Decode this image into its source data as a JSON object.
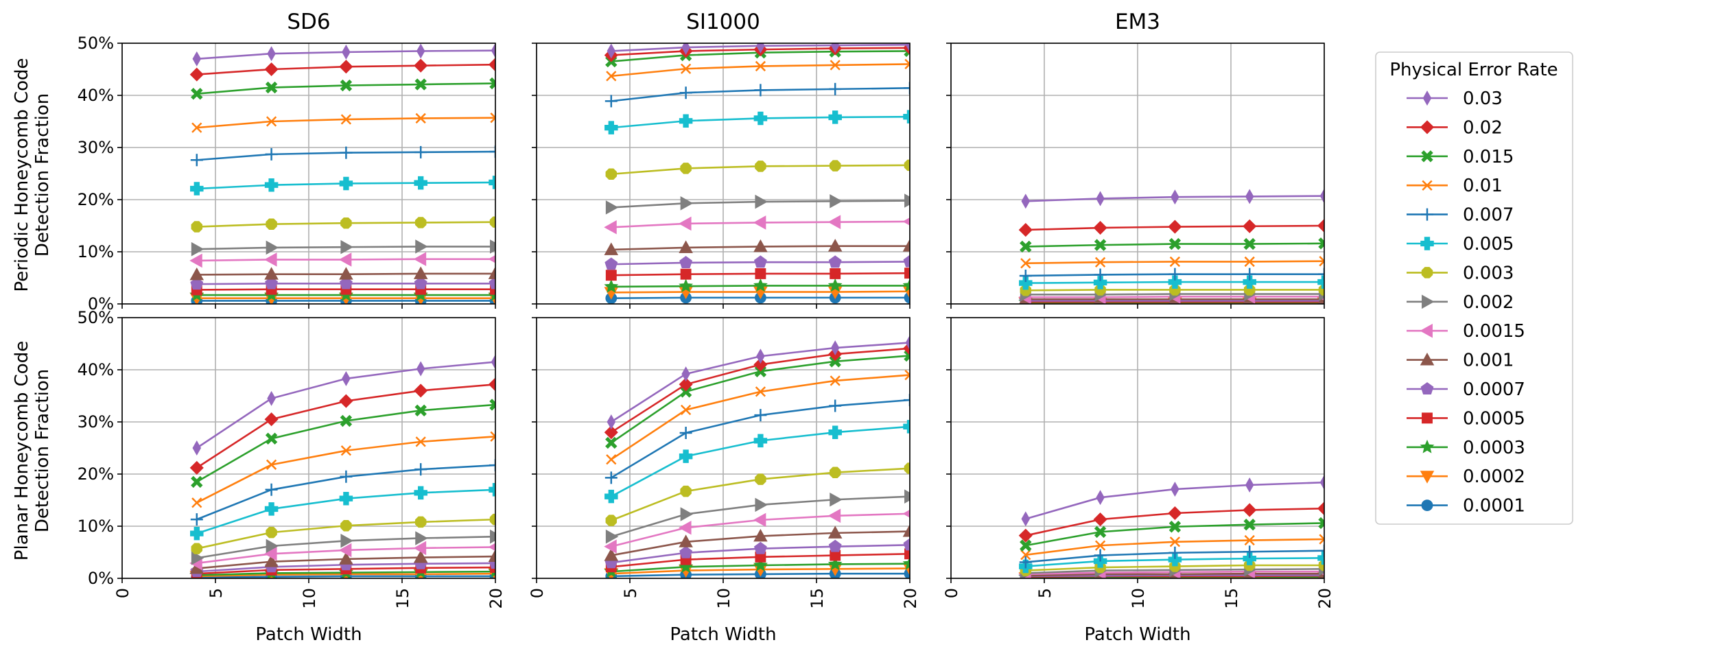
{
  "chart_data": {
    "type": "line",
    "columns": [
      "SD6",
      "SI1000",
      "EM3"
    ],
    "rows": [
      "Periodic Honeycomb Code\nDetection Fraction",
      "Planar Honeycomb Code\nDetection Fraction"
    ],
    "xlabel": "Patch Width",
    "xlim": [
      0,
      20
    ],
    "xticks": [
      0,
      5,
      10,
      15,
      20
    ],
    "ylim": [
      0,
      0.5
    ],
    "yticks": [
      0,
      0.1,
      0.2,
      0.3,
      0.4,
      0.5
    ],
    "ytick_labels": [
      "0%",
      "10%",
      "20%",
      "30%",
      "40%",
      "50%"
    ],
    "x": [
      4,
      8,
      12,
      16,
      20
    ],
    "grid": true,
    "legend_title": "Physical Error Rate",
    "legend_position": "right",
    "series": [
      {
        "name": "0.03",
        "color": "#9467bd",
        "marker": "thin_diamond"
      },
      {
        "name": "0.02",
        "color": "#d62728",
        "marker": "diamond"
      },
      {
        "name": "0.015",
        "color": "#2ca02c",
        "marker": "x_filled"
      },
      {
        "name": "0.01",
        "color": "#ff7f0e",
        "marker": "x"
      },
      {
        "name": "0.007",
        "color": "#1f77b4",
        "marker": "plus"
      },
      {
        "name": "0.005",
        "color": "#17becf",
        "marker": "plus_filled"
      },
      {
        "name": "0.003",
        "color": "#bcbd22",
        "marker": "octagon"
      },
      {
        "name": "0.002",
        "color": "#7f7f7f",
        "marker": "triangle_right"
      },
      {
        "name": "0.0015",
        "color": "#e377c2",
        "marker": "triangle_left"
      },
      {
        "name": "0.001",
        "color": "#8c564b",
        "marker": "triangle_up"
      },
      {
        "name": "0.0007",
        "color": "#9467bd",
        "marker": "pentagon"
      },
      {
        "name": "0.0005",
        "color": "#d62728",
        "marker": "square"
      },
      {
        "name": "0.0003",
        "color": "#2ca02c",
        "marker": "star"
      },
      {
        "name": "0.0002",
        "color": "#ff7f0e",
        "marker": "triangle_down"
      },
      {
        "name": "0.0001",
        "color": "#1f77b4",
        "marker": "circle"
      }
    ],
    "panels": [
      [
        [
          [
            0.47,
            0.48,
            0.483,
            0.485,
            0.486
          ],
          [
            0.44,
            0.45,
            0.455,
            0.457,
            0.459
          ],
          [
            0.403,
            0.415,
            0.419,
            0.421,
            0.423
          ],
          [
            0.338,
            0.35,
            0.354,
            0.356,
            0.357
          ],
          [
            0.276,
            0.287,
            0.29,
            0.291,
            0.292
          ],
          [
            0.221,
            0.228,
            0.231,
            0.232,
            0.233
          ],
          [
            0.148,
            0.153,
            0.155,
            0.156,
            0.157
          ],
          [
            0.105,
            0.108,
            0.109,
            0.11,
            0.11
          ],
          [
            0.083,
            0.085,
            0.085,
            0.086,
            0.086
          ],
          [
            0.056,
            0.057,
            0.057,
            0.058,
            0.058
          ],
          [
            0.038,
            0.039,
            0.039,
            0.039,
            0.039
          ],
          [
            0.027,
            0.028,
            0.028,
            0.028,
            0.028
          ],
          [
            0.017,
            0.017,
            0.017,
            0.017,
            0.017
          ],
          [
            0.011,
            0.011,
            0.011,
            0.011,
            0.011
          ],
          [
            0.006,
            0.006,
            0.006,
            0.006,
            0.006
          ]
        ],
        [
          [
            0.485,
            0.492,
            0.495,
            0.496,
            0.497
          ],
          [
            0.477,
            0.485,
            0.488,
            0.49,
            0.491
          ],
          [
            0.465,
            0.477,
            0.482,
            0.484,
            0.485
          ],
          [
            0.437,
            0.451,
            0.456,
            0.458,
            0.46
          ],
          [
            0.389,
            0.405,
            0.41,
            0.412,
            0.414
          ],
          [
            0.338,
            0.351,
            0.356,
            0.358,
            0.359
          ],
          [
            0.249,
            0.26,
            0.264,
            0.265,
            0.266
          ],
          [
            0.185,
            0.193,
            0.196,
            0.197,
            0.198
          ],
          [
            0.147,
            0.154,
            0.156,
            0.157,
            0.158
          ],
          [
            0.104,
            0.108,
            0.11,
            0.111,
            0.111
          ],
          [
            0.076,
            0.079,
            0.08,
            0.08,
            0.081
          ],
          [
            0.055,
            0.057,
            0.058,
            0.058,
            0.059
          ],
          [
            0.033,
            0.034,
            0.035,
            0.035,
            0.035
          ],
          [
            0.022,
            0.023,
            0.023,
            0.023,
            0.024
          ],
          [
            0.011,
            0.012,
            0.012,
            0.012,
            0.012
          ]
        ],
        [
          [
            0.197,
            0.202,
            0.205,
            0.206,
            0.207
          ],
          [
            0.142,
            0.146,
            0.148,
            0.149,
            0.15
          ],
          [
            0.11,
            0.113,
            0.115,
            0.115,
            0.116
          ],
          [
            0.078,
            0.08,
            0.081,
            0.081,
            0.082
          ],
          [
            0.054,
            0.056,
            0.057,
            0.057,
            0.057
          ],
          [
            0.04,
            0.041,
            0.042,
            0.042,
            0.042
          ],
          [
            0.026,
            0.027,
            0.027,
            0.027,
            0.027
          ],
          [
            0.018,
            0.018,
            0.019,
            0.019,
            0.019
          ],
          [
            0.013,
            0.013,
            0.014,
            0.014,
            0.014
          ],
          [
            0.009,
            0.009,
            0.009,
            0.009,
            0.009
          ],
          [
            0.006,
            0.006,
            0.006,
            0.006,
            0.006
          ],
          [
            0.004,
            0.004,
            0.004,
            0.004,
            0.004
          ],
          [
            0.003,
            0.003,
            0.003,
            0.003,
            0.003
          ],
          [
            0.002,
            0.002,
            0.002,
            0.002,
            0.002
          ],
          [
            0.001,
            0.001,
            0.001,
            0.001,
            0.001
          ]
        ]
      ],
      [
        [
          [
            0.25,
            0.345,
            0.383,
            0.402,
            0.415
          ],
          [
            0.212,
            0.305,
            0.34,
            0.36,
            0.372
          ],
          [
            0.185,
            0.268,
            0.302,
            0.322,
            0.333
          ],
          [
            0.145,
            0.218,
            0.245,
            0.262,
            0.272
          ],
          [
            0.113,
            0.17,
            0.195,
            0.209,
            0.217
          ],
          [
            0.086,
            0.133,
            0.153,
            0.164,
            0.17
          ],
          [
            0.057,
            0.088,
            0.101,
            0.108,
            0.113
          ],
          [
            0.039,
            0.062,
            0.072,
            0.077,
            0.08
          ],
          [
            0.029,
            0.047,
            0.054,
            0.058,
            0.06
          ],
          [
            0.019,
            0.032,
            0.037,
            0.04,
            0.042
          ],
          [
            0.013,
            0.022,
            0.026,
            0.028,
            0.029
          ],
          [
            0.009,
            0.016,
            0.018,
            0.02,
            0.021
          ],
          [
            0.006,
            0.01,
            0.011,
            0.012,
            0.013
          ],
          [
            0.004,
            0.007,
            0.008,
            0.008,
            0.009
          ],
          [
            0.002,
            0.003,
            0.004,
            0.004,
            0.004
          ]
        ],
        [
          [
            0.3,
            0.392,
            0.426,
            0.442,
            0.452
          ],
          [
            0.28,
            0.372,
            0.41,
            0.43,
            0.441
          ],
          [
            0.26,
            0.358,
            0.397,
            0.416,
            0.427
          ],
          [
            0.228,
            0.323,
            0.358,
            0.379,
            0.39
          ],
          [
            0.193,
            0.279,
            0.313,
            0.331,
            0.342
          ],
          [
            0.157,
            0.234,
            0.264,
            0.28,
            0.291
          ],
          [
            0.111,
            0.167,
            0.19,
            0.203,
            0.211
          ],
          [
            0.08,
            0.123,
            0.141,
            0.151,
            0.157
          ],
          [
            0.061,
            0.097,
            0.112,
            0.12,
            0.124
          ],
          [
            0.044,
            0.07,
            0.081,
            0.087,
            0.09
          ],
          [
            0.03,
            0.049,
            0.057,
            0.061,
            0.064
          ],
          [
            0.022,
            0.036,
            0.041,
            0.044,
            0.047
          ],
          [
            0.013,
            0.022,
            0.025,
            0.027,
            0.028
          ],
          [
            0.009,
            0.015,
            0.017,
            0.018,
            0.019
          ],
          [
            0.004,
            0.007,
            0.008,
            0.009,
            0.009
          ]
        ],
        [
          [
            0.114,
            0.155,
            0.171,
            0.179,
            0.184
          ],
          [
            0.082,
            0.113,
            0.125,
            0.131,
            0.134
          ],
          [
            0.063,
            0.089,
            0.099,
            0.103,
            0.106
          ],
          [
            0.045,
            0.063,
            0.07,
            0.073,
            0.075
          ],
          [
            0.031,
            0.044,
            0.049,
            0.051,
            0.053
          ],
          [
            0.023,
            0.033,
            0.036,
            0.038,
            0.039
          ],
          [
            0.015,
            0.021,
            0.023,
            0.025,
            0.025
          ],
          [
            0.01,
            0.015,
            0.016,
            0.017,
            0.018
          ],
          [
            0.008,
            0.011,
            0.012,
            0.013,
            0.013
          ],
          [
            0.005,
            0.008,
            0.008,
            0.009,
            0.009
          ],
          [
            0.004,
            0.005,
            0.006,
            0.006,
            0.006
          ],
          [
            0.003,
            0.004,
            0.004,
            0.004,
            0.005
          ],
          [
            0.002,
            0.002,
            0.003,
            0.003,
            0.003
          ],
          [
            0.001,
            0.002,
            0.002,
            0.002,
            0.002
          ],
          [
            0.001,
            0.001,
            0.001,
            0.001,
            0.001
          ]
        ]
      ]
    ]
  }
}
